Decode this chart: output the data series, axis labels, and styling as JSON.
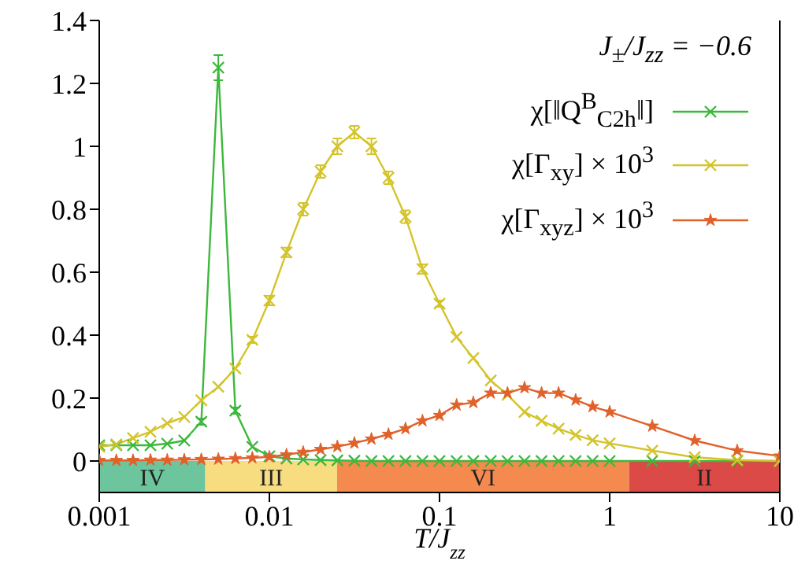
{
  "chart_data": {
    "type": "line",
    "x": [
      0.001,
      0.00126,
      0.00158,
      0.002,
      0.00251,
      0.00316,
      0.00398,
      0.00501,
      0.00631,
      0.00794,
      0.01,
      0.0126,
      0.0158,
      0.02,
      0.0251,
      0.0316,
      0.0398,
      0.0501,
      0.0631,
      0.0794,
      0.1,
      0.126,
      0.158,
      0.2,
      0.251,
      0.316,
      0.398,
      0.501,
      0.631,
      0.794,
      1,
      1.78,
      3.16,
      5.62,
      10
    ],
    "series": [
      {
        "name": "χ[‖Q$^{B}$$_{C2h}$‖]",
        "color": "#3cb83c",
        "marker": "cross",
        "values": [
          0.05,
          0.05,
          0.05,
          0.05,
          0.055,
          0.065,
          0.125,
          1.25,
          0.16,
          0.045,
          0.015,
          0.008,
          0.005,
          0.003,
          0.002,
          0.001,
          0,
          0,
          0,
          0,
          0,
          0,
          0,
          0,
          0,
          0,
          0,
          0,
          0,
          0,
          0,
          0,
          0,
          0,
          0
        ],
        "errors": [
          null,
          null,
          null,
          null,
          null,
          null,
          0.01,
          0.04,
          0.01,
          null,
          null,
          null,
          null,
          null,
          null,
          null,
          null,
          null,
          null,
          null,
          null,
          null,
          null,
          null,
          null,
          null,
          null,
          null,
          null,
          null,
          null,
          null,
          null,
          null,
          null
        ]
      },
      {
        "name": "χ[Γ$_{xy}$] × 10$^{3}$",
        "color": "#d4c42a",
        "marker": "cross",
        "values": [
          0.045,
          0.053,
          0.073,
          0.093,
          0.12,
          0.14,
          0.193,
          0.236,
          0.294,
          0.385,
          0.51,
          0.663,
          0.8,
          0.92,
          1.0,
          1.045,
          1.0,
          0.9,
          0.776,
          0.61,
          0.5,
          0.394,
          0.327,
          0.256,
          0.21,
          0.156,
          0.128,
          0.103,
          0.083,
          0.066,
          0.056,
          0.033,
          0.012,
          0.003,
          0
        ],
        "errors": [
          null,
          null,
          null,
          null,
          null,
          null,
          null,
          null,
          null,
          0.01,
          0.015,
          0.015,
          0.02,
          0.02,
          0.025,
          0.02,
          0.025,
          0.02,
          0.02,
          0.015,
          0.01,
          null,
          null,
          null,
          null,
          null,
          null,
          null,
          null,
          null,
          null,
          null,
          null,
          null,
          null
        ]
      },
      {
        "name": "χ[Γ$_{xyz}$] × 10$^{3}$",
        "color": "#e0622a",
        "marker": "star",
        "values": [
          0.002,
          0.002,
          0.002,
          0.003,
          0.003,
          0.004,
          0.005,
          0.006,
          0.008,
          0.01,
          0.013,
          0.02,
          0.028,
          0.037,
          0.046,
          0.057,
          0.07,
          0.085,
          0.103,
          0.128,
          0.145,
          0.178,
          0.186,
          0.216,
          0.216,
          0.233,
          0.216,
          0.216,
          0.194,
          0.173,
          0.156,
          0.111,
          0.065,
          0.033,
          0.016
        ]
      }
    ],
    "xlabel": "T/J$_{zz}$",
    "annotations": [
      "J$_{±}$/J$_{zz}$ = −0.6"
    ],
    "log": "x",
    "xlim": [
      0.001,
      10
    ],
    "xticks": [
      0.001,
      0.01,
      0.1,
      1,
      10
    ],
    "ylim": [
      -0.1,
      1.4
    ],
    "yticks": [
      0,
      0.2,
      0.4,
      0.6,
      0.8,
      1,
      1.2,
      1.4
    ],
    "bands": [
      {
        "axis": "x",
        "from": 0.001,
        "to": 0.0042,
        "label": "IV",
        "color": "#6cc59c"
      },
      {
        "axis": "x",
        "from": 0.0042,
        "to": 0.025,
        "label": "III",
        "color": "#f7dc80"
      },
      {
        "axis": "x",
        "from": 0.025,
        "to": 1.3,
        "label": "VI",
        "color": "#f48a4e"
      },
      {
        "axis": "x",
        "from": 1.3,
        "to": 10,
        "label": "II",
        "color": "#dc4a48"
      }
    ],
    "grid": false,
    "legend": "top right"
  }
}
